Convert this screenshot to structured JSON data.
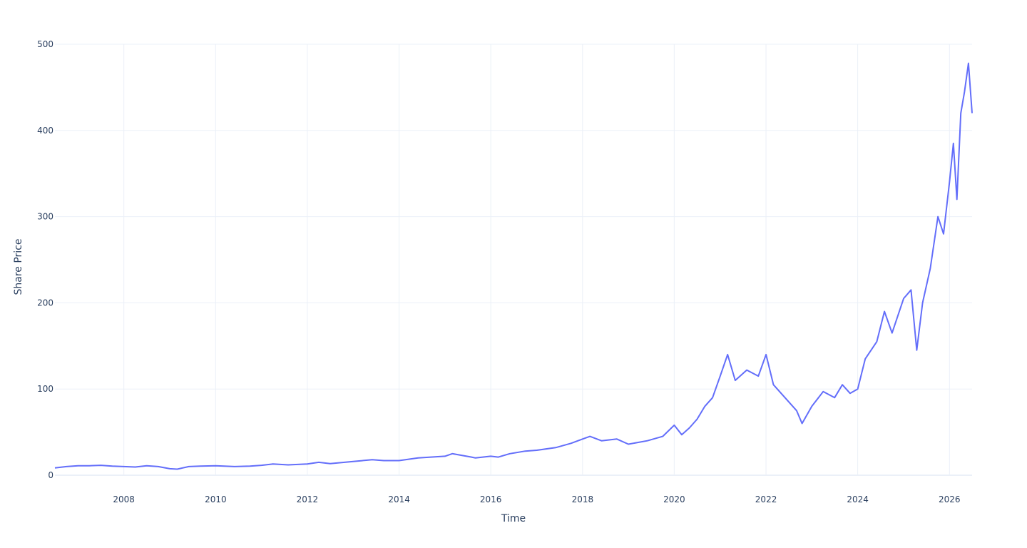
{
  "chart_data": {
    "type": "line",
    "title": "",
    "xlabel": "Time",
    "ylabel": "Share Price",
    "x_range": [
      "2006-07-01",
      "2026-06-30"
    ],
    "ylim": [
      0,
      500
    ],
    "x_ticks": [
      "2008",
      "2010",
      "2012",
      "2014",
      "2016",
      "2018",
      "2020",
      "2022",
      "2024",
      "2026"
    ],
    "y_ticks": [
      0,
      100,
      200,
      300,
      400,
      500
    ],
    "grid": true,
    "line_color": "#636efa",
    "series": [
      {
        "name": "",
        "points": [
          [
            "2006-07-01",
            8.5
          ],
          [
            "2006-10-01",
            10
          ],
          [
            "2007-01-01",
            11
          ],
          [
            "2007-04-01",
            11
          ],
          [
            "2007-07-01",
            11.5
          ],
          [
            "2007-10-01",
            10.5
          ],
          [
            "2008-01-01",
            10
          ],
          [
            "2008-04-01",
            9.5
          ],
          [
            "2008-07-01",
            11
          ],
          [
            "2008-10-01",
            10
          ],
          [
            "2009-01-01",
            7.5
          ],
          [
            "2009-03-01",
            7
          ],
          [
            "2009-06-01",
            10
          ],
          [
            "2009-09-01",
            10.5
          ],
          [
            "2010-01-01",
            11
          ],
          [
            "2010-06-01",
            10
          ],
          [
            "2010-10-01",
            10.5
          ],
          [
            "2011-01-01",
            11.5
          ],
          [
            "2011-04-01",
            13
          ],
          [
            "2011-08-01",
            12
          ],
          [
            "2012-01-01",
            13
          ],
          [
            "2012-04-01",
            15
          ],
          [
            "2012-07-01",
            13.5
          ],
          [
            "2013-01-01",
            16
          ],
          [
            "2013-06-01",
            18
          ],
          [
            "2013-09-01",
            17
          ],
          [
            "2014-01-01",
            17
          ],
          [
            "2014-06-01",
            20
          ],
          [
            "2015-01-01",
            22
          ],
          [
            "2015-03-01",
            25
          ],
          [
            "2015-08-01",
            21
          ],
          [
            "2015-09-01",
            20
          ],
          [
            "2016-01-01",
            22
          ],
          [
            "2016-03-01",
            21
          ],
          [
            "2016-06-01",
            25
          ],
          [
            "2016-10-01",
            28
          ],
          [
            "2017-01-01",
            29
          ],
          [
            "2017-06-01",
            32
          ],
          [
            "2017-10-01",
            37
          ],
          [
            "2018-01-01",
            42
          ],
          [
            "2018-03-01",
            45
          ],
          [
            "2018-06-01",
            40
          ],
          [
            "2018-10-01",
            42
          ],
          [
            "2019-01-01",
            36
          ],
          [
            "2019-06-01",
            40
          ],
          [
            "2019-10-01",
            45
          ],
          [
            "2020-01-01",
            58
          ],
          [
            "2020-03-01",
            47
          ],
          [
            "2020-05-01",
            55
          ],
          [
            "2020-07-01",
            65
          ],
          [
            "2020-09-01",
            80
          ],
          [
            "2020-11-01",
            90
          ],
          [
            "2021-01-01",
            115
          ],
          [
            "2021-03-01",
            140
          ],
          [
            "2021-05-01",
            110
          ],
          [
            "2021-08-01",
            122
          ],
          [
            "2021-11-01",
            115
          ],
          [
            "2022-01-01",
            140
          ],
          [
            "2022-03-01",
            105
          ],
          [
            "2022-06-01",
            90
          ],
          [
            "2022-09-01",
            75
          ],
          [
            "2022-10-15",
            60
          ],
          [
            "2023-01-01",
            80
          ],
          [
            "2023-04-01",
            97
          ],
          [
            "2023-07-01",
            90
          ],
          [
            "2023-09-01",
            105
          ],
          [
            "2023-11-01",
            95
          ],
          [
            "2024-01-01",
            100
          ],
          [
            "2024-03-01",
            135
          ],
          [
            "2024-06-01",
            155
          ],
          [
            "2024-08-01",
            190
          ],
          [
            "2024-10-01",
            165
          ],
          [
            "2025-01-01",
            205
          ],
          [
            "2025-03-01",
            215
          ],
          [
            "2025-04-15",
            145
          ],
          [
            "2025-06-01",
            200
          ],
          [
            "2025-08-01",
            240
          ],
          [
            "2025-10-01",
            300
          ],
          [
            "2025-11-15",
            280
          ],
          [
            "2026-01-01",
            340
          ],
          [
            "2026-02-01",
            385
          ],
          [
            "2026-03-01",
            320
          ],
          [
            "2026-04-01",
            420
          ],
          [
            "2026-05-01",
            445
          ],
          [
            "2026-06-01",
            478
          ],
          [
            "2026-06-30",
            420
          ]
        ]
      }
    ]
  }
}
